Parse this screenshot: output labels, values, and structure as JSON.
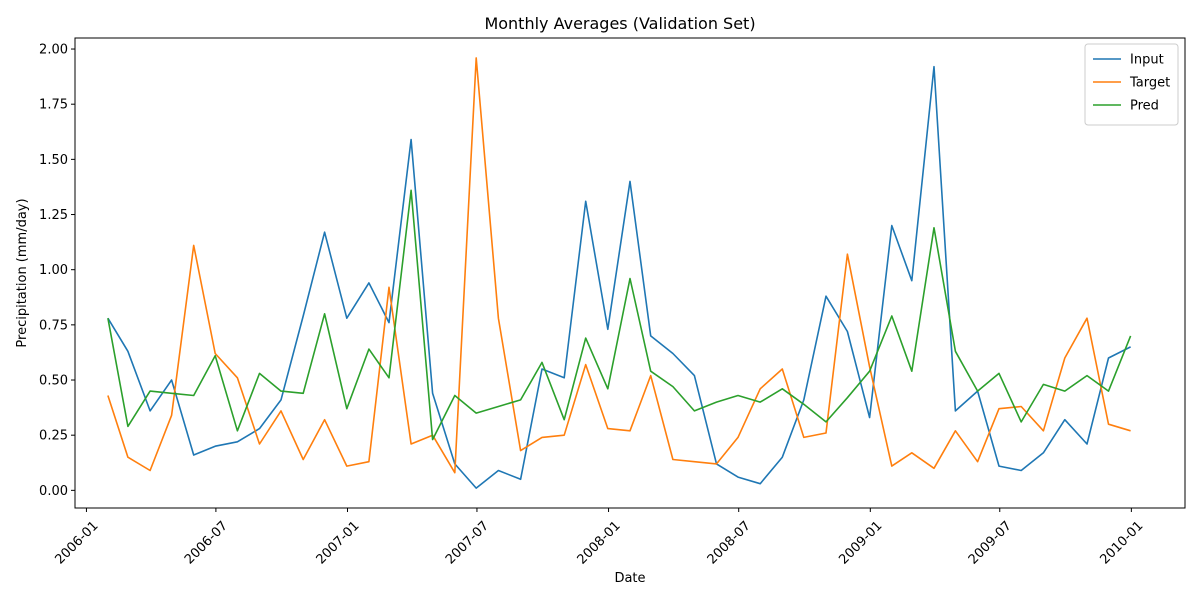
{
  "chart_data": {
    "type": "line",
    "title": "Monthly Averages (Validation Set)",
    "xlabel": "Date",
    "ylabel": "Precipitation (mm/day)",
    "ylim": [
      -0.08,
      2.05
    ],
    "yticks": [
      0.0,
      0.25,
      0.5,
      0.75,
      1.0,
      1.25,
      1.5,
      1.75,
      2.0
    ],
    "ytick_labels": [
      "0.00",
      "0.25",
      "0.50",
      "0.75",
      "1.00",
      "1.25",
      "1.50",
      "1.75",
      "2.00"
    ],
    "xlim": [
      "2005-12-16",
      "2010-03-17"
    ],
    "xticks": [
      "2006-01-01",
      "2006-07-01",
      "2007-01-01",
      "2007-07-01",
      "2008-01-01",
      "2008-07-01",
      "2009-01-01",
      "2009-07-01",
      "2010-01-01"
    ],
    "xtick_labels": [
      "2006-01",
      "2006-07",
      "2007-01",
      "2007-07",
      "2008-01",
      "2008-07",
      "2009-01",
      "2009-07",
      "2010-01"
    ],
    "legend_position": "top-right",
    "grid": false,
    "x": [
      "2006-01-31",
      "2006-02-28",
      "2006-03-31",
      "2006-04-30",
      "2006-05-31",
      "2006-06-30",
      "2006-07-31",
      "2006-08-31",
      "2006-09-30",
      "2006-10-31",
      "2006-11-30",
      "2006-12-31",
      "2007-01-31",
      "2007-02-28",
      "2007-03-31",
      "2007-04-30",
      "2007-05-31",
      "2007-06-30",
      "2007-07-31",
      "2007-08-31",
      "2007-09-30",
      "2007-10-31",
      "2007-11-30",
      "2007-12-31",
      "2008-01-31",
      "2008-02-29",
      "2008-03-31",
      "2008-04-30",
      "2008-05-31",
      "2008-06-30",
      "2008-07-31",
      "2008-08-31",
      "2008-09-30",
      "2008-10-31",
      "2008-11-30",
      "2008-12-31",
      "2009-01-31",
      "2009-02-28",
      "2009-03-31",
      "2009-04-30",
      "2009-05-31",
      "2009-06-30",
      "2009-07-31",
      "2009-08-31",
      "2009-09-30",
      "2009-10-31",
      "2009-11-30",
      "2009-12-31"
    ],
    "series": [
      {
        "name": "Input",
        "color": "#1f77b4",
        "values": [
          0.78,
          0.63,
          0.36,
          0.5,
          0.16,
          0.2,
          0.22,
          0.28,
          0.41,
          0.79,
          1.17,
          0.78,
          0.94,
          0.76,
          1.59,
          0.44,
          0.12,
          0.01,
          0.09,
          0.05,
          0.55,
          0.51,
          1.31,
          0.73,
          1.4,
          0.7,
          0.62,
          0.52,
          0.12,
          0.06,
          0.03,
          0.15,
          0.41,
          0.88,
          0.72,
          0.33,
          1.2,
          0.95,
          1.92,
          0.36,
          0.45,
          0.11,
          0.09,
          0.17,
          0.32,
          0.21,
          0.6,
          0.65
        ]
      },
      {
        "name": "Target",
        "color": "#ff7f0e",
        "values": [
          0.43,
          0.15,
          0.09,
          0.34,
          1.11,
          0.62,
          0.51,
          0.21,
          0.36,
          0.14,
          0.32,
          0.11,
          0.13,
          0.92,
          0.21,
          0.25,
          0.08,
          1.96,
          0.78,
          0.18,
          0.24,
          0.25,
          0.57,
          0.28,
          0.27,
          0.52,
          0.14,
          0.13,
          0.12,
          0.24,
          0.46,
          0.55,
          0.24,
          0.26,
          1.07,
          0.56,
          0.11,
          0.17,
          0.1,
          0.27,
          0.13,
          0.37,
          0.38,
          0.27,
          0.6,
          0.78,
          0.3,
          0.27
        ]
      },
      {
        "name": "Pred",
        "color": "#2ca02c",
        "values": [
          0.78,
          0.29,
          0.45,
          0.44,
          0.43,
          0.61,
          0.27,
          0.53,
          0.45,
          0.44,
          0.8,
          0.37,
          0.64,
          0.51,
          1.36,
          0.23,
          0.43,
          0.35,
          0.38,
          0.41,
          0.58,
          0.32,
          0.69,
          0.46,
          0.96,
          0.54,
          0.47,
          0.36,
          0.4,
          0.43,
          0.4,
          0.46,
          0.39,
          0.31,
          0.42,
          0.54,
          0.79,
          0.54,
          1.19,
          0.63,
          0.45,
          0.53,
          0.31,
          0.48,
          0.45,
          0.52,
          0.45,
          0.7
        ]
      }
    ]
  }
}
